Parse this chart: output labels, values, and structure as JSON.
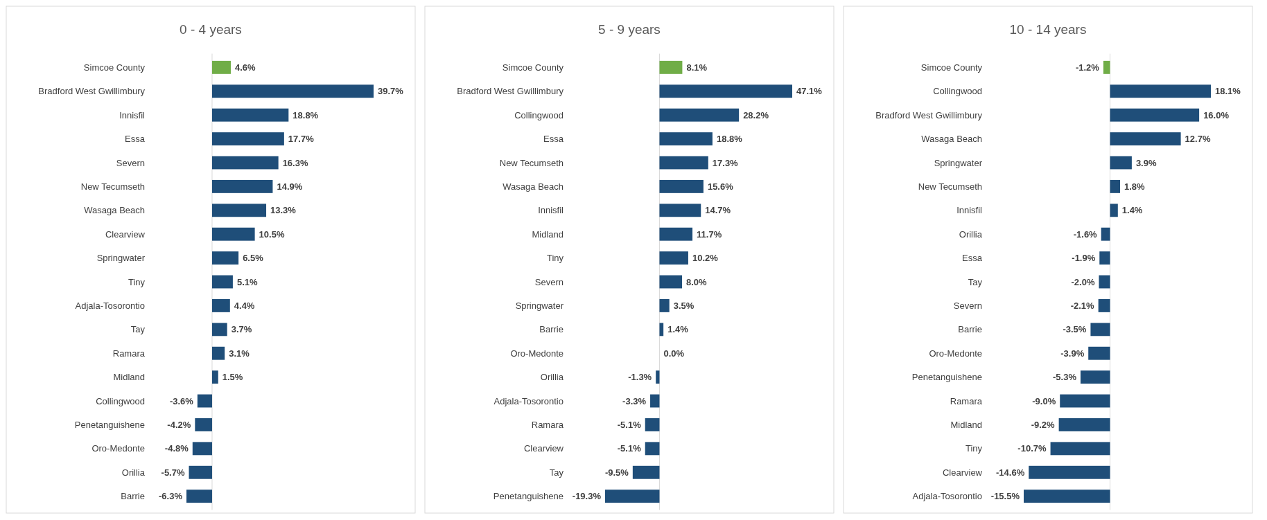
{
  "chart_data": [
    {
      "type": "bar",
      "orientation": "horizontal",
      "title": "0 - 4 years",
      "categories": [
        "Simcoe County",
        "Bradford West Gwillimbury",
        "Innisfil",
        "Essa",
        "Severn",
        "New Tecumseth",
        "Wasaga Beach",
        "Clearview",
        "Springwater",
        "Tiny",
        "Adjala-Tosorontio",
        "Tay",
        "Ramara",
        "Midland",
        "Collingwood",
        "Penetanguishene",
        "Oro-Medonte",
        "Orillia",
        "Barrie"
      ],
      "values": [
        4.6,
        39.7,
        18.8,
        17.7,
        16.3,
        14.9,
        13.3,
        10.5,
        6.5,
        5.1,
        4.4,
        3.7,
        3.1,
        1.5,
        -3.6,
        -4.2,
        -4.8,
        -5.7,
        -6.3
      ],
      "value_labels": [
        "4.6%",
        "39.7%",
        "18.8%",
        "17.7%",
        "16.3%",
        "14.9%",
        "13.3%",
        "10.5%",
        "6.5%",
        "5.1%",
        "4.4%",
        "3.7%",
        "3.1%",
        "1.5%",
        "-3.6%",
        "-4.2%",
        "-4.8%",
        "-5.7%",
        "-6.3%"
      ],
      "colors": [
        "#70ad47",
        "#1f4e79",
        "#1f4e79",
        "#1f4e79",
        "#1f4e79",
        "#1f4e79",
        "#1f4e79",
        "#1f4e79",
        "#1f4e79",
        "#1f4e79",
        "#1f4e79",
        "#1f4e79",
        "#1f4e79",
        "#1f4e79",
        "#1f4e79",
        "#1f4e79",
        "#1f4e79",
        "#1f4e79",
        "#1f4e79"
      ]
    },
    {
      "type": "bar",
      "orientation": "horizontal",
      "title": "5 - 9 years",
      "categories": [
        "Simcoe County",
        "Bradford West Gwillimbury",
        "Collingwood",
        "Essa",
        "New Tecumseth",
        "Wasaga Beach",
        "Innisfil",
        "Midland",
        "Tiny",
        "Severn",
        "Springwater",
        "Barrie",
        "Oro-Medonte",
        "Orillia",
        "Adjala-Tosorontio",
        "Ramara",
        "Clearview",
        "Tay",
        "Penetanguishene"
      ],
      "values": [
        8.1,
        47.1,
        28.2,
        18.8,
        17.3,
        15.6,
        14.7,
        11.7,
        10.2,
        8.0,
        3.5,
        1.4,
        0.0,
        -1.3,
        -3.3,
        -5.1,
        -5.1,
        -9.5,
        -19.3
      ],
      "value_labels": [
        "8.1%",
        "47.1%",
        "28.2%",
        "18.8%",
        "17.3%",
        "15.6%",
        "14.7%",
        "11.7%",
        "10.2%",
        "8.0%",
        "3.5%",
        "1.4%",
        "0.0%",
        "-1.3%",
        "-3.3%",
        "-5.1%",
        "-5.1%",
        "-9.5%",
        "-19.3%"
      ],
      "colors": [
        "#70ad47",
        "#1f4e79",
        "#1f4e79",
        "#1f4e79",
        "#1f4e79",
        "#1f4e79",
        "#1f4e79",
        "#1f4e79",
        "#1f4e79",
        "#1f4e79",
        "#1f4e79",
        "#1f4e79",
        "#1f4e79",
        "#1f4e79",
        "#1f4e79",
        "#1f4e79",
        "#1f4e79",
        "#1f4e79",
        "#1f4e79"
      ]
    },
    {
      "type": "bar",
      "orientation": "horizontal",
      "title": "10 - 14 years",
      "categories": [
        "Simcoe County",
        "Collingwood",
        "Bradford West Gwillimbury",
        "Wasaga Beach",
        "Springwater",
        "New Tecumseth",
        "Innisfil",
        "Orillia",
        "Essa",
        "Tay",
        "Severn",
        "Barrie",
        "Oro-Medonte",
        "Penetanguishene",
        "Ramara",
        "Midland",
        "Tiny",
        "Clearview",
        "Adjala-Tosorontio"
      ],
      "values": [
        -1.2,
        18.1,
        16.0,
        12.7,
        3.9,
        1.8,
        1.4,
        -1.6,
        -1.9,
        -2.0,
        -2.1,
        -3.5,
        -3.9,
        -5.3,
        -9.0,
        -9.2,
        -10.7,
        -14.6,
        -15.5
      ],
      "value_labels": [
        "-1.2%",
        "18.1%",
        "16.0%",
        "12.7%",
        "3.9%",
        "1.8%",
        "1.4%",
        "-1.6%",
        "-1.9%",
        "-2.0%",
        "-2.1%",
        "-3.5%",
        "-3.9%",
        "-5.3%",
        "-9.0%",
        "-9.2%",
        "-10.7%",
        "-14.6%",
        "-15.5%"
      ],
      "colors": [
        "#70ad47",
        "#1f4e79",
        "#1f4e79",
        "#1f4e79",
        "#1f4e79",
        "#1f4e79",
        "#1f4e79",
        "#1f4e79",
        "#1f4e79",
        "#1f4e79",
        "#1f4e79",
        "#1f4e79",
        "#1f4e79",
        "#1f4e79",
        "#1f4e79",
        "#1f4e79",
        "#1f4e79",
        "#1f4e79",
        "#1f4e79"
      ]
    }
  ]
}
